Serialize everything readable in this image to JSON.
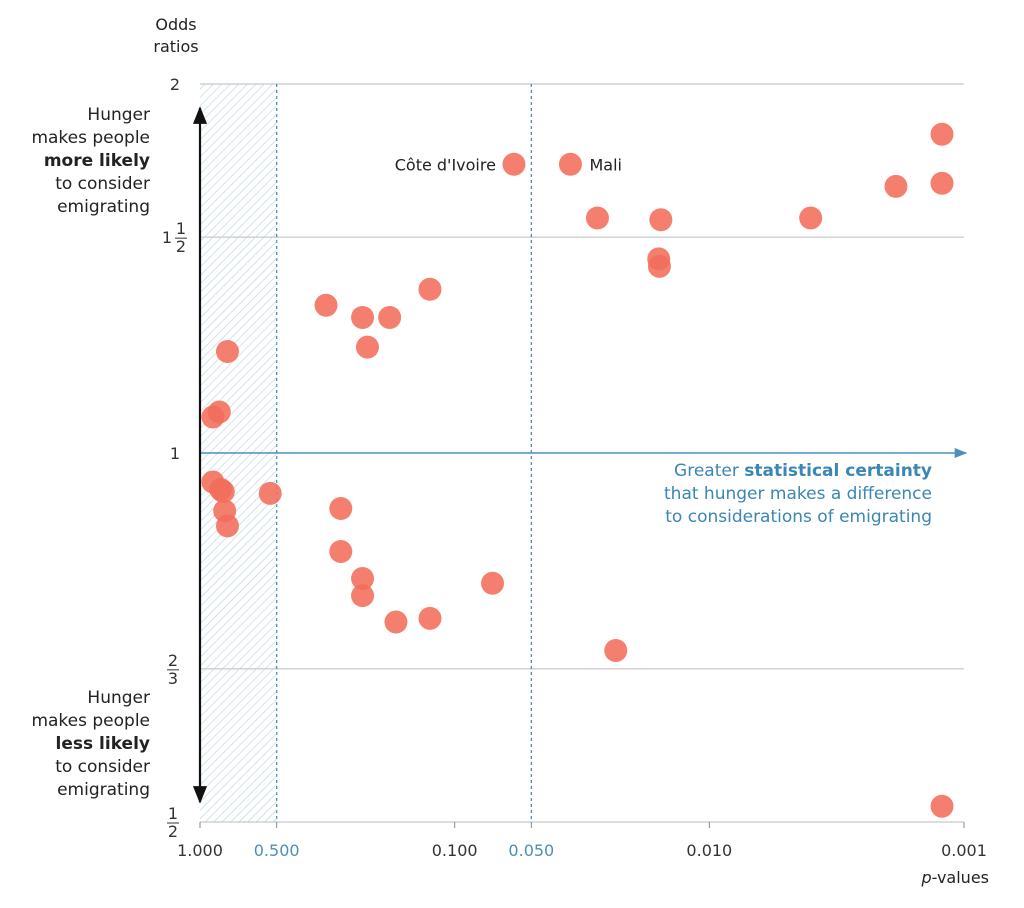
{
  "y_title_line1": "Odds",
  "y_title_line2": "ratios",
  "x_title_italic": "p",
  "x_title_rest": "-values",
  "note_more": {
    "l1": "Hunger",
    "l2": "makes people",
    "l3": "more likely",
    "l4": "to consider",
    "l5": "emigrating"
  },
  "note_less": {
    "l1": "Hunger",
    "l2": "makes people",
    "l3": "less likely",
    "l4": "to consider",
    "l5": "emigrating"
  },
  "certainty": {
    "l1a": "Greater ",
    "l1b": "statistical certainty",
    "l2": "that hunger makes a difference",
    "l3": "to considerations of emigrating"
  },
  "colors": {
    "point": "#f26d5b",
    "accent": "#4a90b8",
    "grid": "#bbbbbb",
    "arrow": "#111111",
    "hatch": "#bcd4e2"
  },
  "chart_data": {
    "type": "scatter",
    "title": "",
    "xlabel": "p-values",
    "ylabel": "Odds ratios",
    "x_scale": "log, reversed",
    "y_scale": "log",
    "xlim": [
      1.0,
      0.001
    ],
    "ylim": [
      0.5,
      2.0
    ],
    "x_ticks": [
      {
        "value": 1.0,
        "label": "1.000",
        "accent": false
      },
      {
        "value": 0.5,
        "label": "0.500",
        "accent": true
      },
      {
        "value": 0.1,
        "label": "0.100",
        "accent": false
      },
      {
        "value": 0.05,
        "label": "0.050",
        "accent": true
      },
      {
        "value": 0.01,
        "label": "0.010",
        "accent": false
      },
      {
        "value": 0.001,
        "label": "0.001",
        "accent": false
      }
    ],
    "y_ticks": [
      {
        "value": 2.0,
        "label": "2"
      },
      {
        "value": 1.5,
        "label_int": "1",
        "label_num": "1",
        "label_den": "2"
      },
      {
        "value": 1.0,
        "label": "1"
      },
      {
        "value": 0.6667,
        "label_num": "2",
        "label_den": "3"
      },
      {
        "value": 0.5,
        "label_num": "1",
        "label_den": "2"
      }
    ],
    "shaded_region": {
      "x_from": 1.0,
      "x_to": 0.5,
      "note": "hatched, not significant"
    },
    "reference_lines": [
      0.5,
      0.05
    ],
    "points": [
      {
        "p": 0.89,
        "or": 1.07
      },
      {
        "p": 0.84,
        "or": 1.08
      },
      {
        "p": 0.78,
        "or": 1.21
      },
      {
        "p": 0.89,
        "or": 0.947
      },
      {
        "p": 0.83,
        "or": 0.934
      },
      {
        "p": 0.81,
        "or": 0.93
      },
      {
        "p": 0.8,
        "or": 0.897
      },
      {
        "p": 0.78,
        "or": 0.872
      },
      {
        "p": 0.53,
        "or": 0.927
      },
      {
        "p": 0.32,
        "or": 1.32
      },
      {
        "p": 0.28,
        "or": 0.901
      },
      {
        "p": 0.28,
        "or": 0.831
      },
      {
        "p": 0.23,
        "or": 1.29
      },
      {
        "p": 0.22,
        "or": 1.22
      },
      {
        "p": 0.18,
        "or": 1.29
      },
      {
        "p": 0.23,
        "or": 0.79
      },
      {
        "p": 0.23,
        "or": 0.765
      },
      {
        "p": 0.17,
        "or": 0.728
      },
      {
        "p": 0.125,
        "or": 0.733
      },
      {
        "p": 0.125,
        "or": 1.36
      },
      {
        "p": 0.071,
        "or": 0.783
      },
      {
        "p": 0.0585,
        "or": 1.72,
        "label": "Côte d'Ivoire"
      },
      {
        "p": 0.0351,
        "or": 1.72,
        "label": "Mali"
      },
      {
        "p": 0.0275,
        "or": 1.555
      },
      {
        "p": 0.0233,
        "or": 0.69
      },
      {
        "p": 0.0155,
        "or": 1.55
      },
      {
        "p": 0.0158,
        "or": 1.44
      },
      {
        "p": 0.0157,
        "or": 1.42
      },
      {
        "p": 0.004,
        "or": 1.555
      },
      {
        "p": 0.00185,
        "or": 1.65
      },
      {
        "p": 0.00122,
        "or": 1.82
      },
      {
        "p": 0.00122,
        "or": 1.66
      },
      {
        "p": 0.00122,
        "or": 0.515
      }
    ]
  }
}
